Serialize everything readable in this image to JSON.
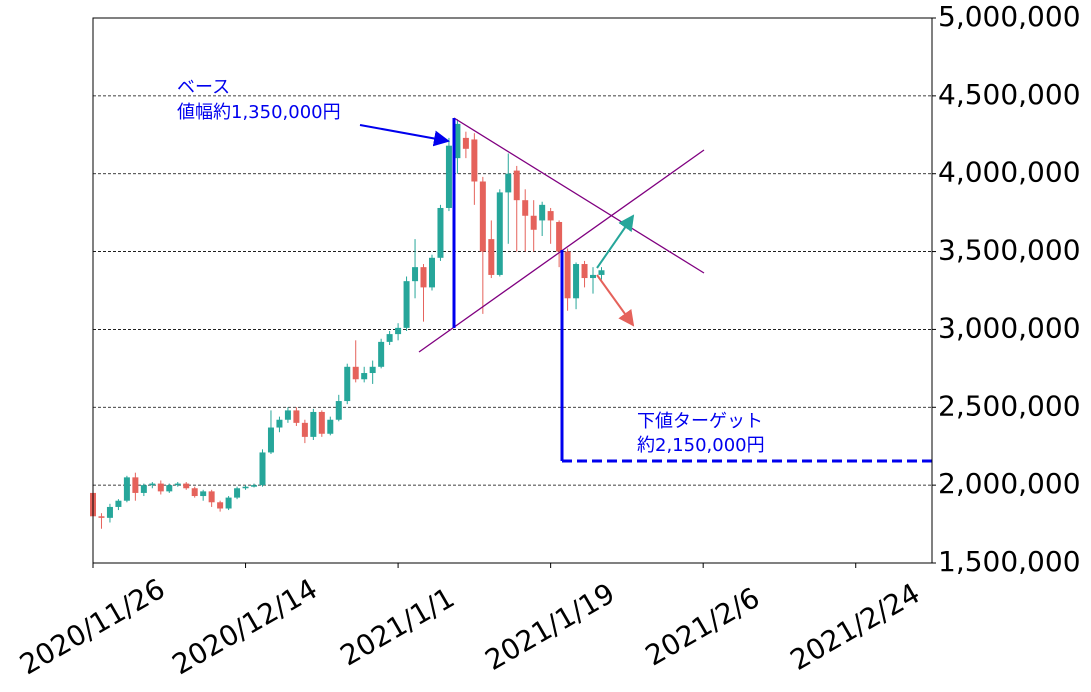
{
  "chart_data": {
    "type": "candlestick",
    "x": [
      "2020-11-26",
      "2020-11-27",
      "2020-11-28",
      "2020-11-29",
      "2020-11-30",
      "2020-12-01",
      "2020-12-02",
      "2020-12-03",
      "2020-12-04",
      "2020-12-05",
      "2020-12-06",
      "2020-12-07",
      "2020-12-08",
      "2020-12-09",
      "2020-12-10",
      "2020-12-11",
      "2020-12-12",
      "2020-12-13",
      "2020-12-14",
      "2020-12-15",
      "2020-12-16",
      "2020-12-17",
      "2020-12-18",
      "2020-12-19",
      "2020-12-20",
      "2020-12-21",
      "2020-12-22",
      "2020-12-23",
      "2020-12-24",
      "2020-12-25",
      "2020-12-26",
      "2020-12-27",
      "2020-12-28",
      "2020-12-29",
      "2020-12-30",
      "2020-12-31",
      "2021-01-01",
      "2021-01-02",
      "2021-01-03",
      "2021-01-04",
      "2021-01-05",
      "2021-01-06",
      "2021-01-07",
      "2021-01-08",
      "2021-01-09",
      "2021-01-10",
      "2021-01-11",
      "2021-01-12",
      "2021-01-13",
      "2021-01-14",
      "2021-01-15",
      "2021-01-16",
      "2021-01-17",
      "2021-01-18",
      "2021-01-19",
      "2021-01-20",
      "2021-01-21",
      "2021-01-22",
      "2021-01-23",
      "2021-01-24",
      "2021-01-25"
    ],
    "open": [
      1950000,
      1800000,
      1790000,
      1860000,
      1900000,
      2050000,
      1950000,
      2000000,
      2010000,
      1960000,
      2000000,
      2010000,
      1980000,
      1930000,
      1960000,
      1890000,
      1850000,
      1920000,
      1980000,
      1990000,
      2000000,
      2210000,
      2370000,
      2420000,
      2480000,
      2400000,
      2310000,
      2470000,
      2330000,
      2420000,
      2540000,
      2760000,
      2680000,
      2720000,
      2760000,
      2920000,
      2970000,
      3010000,
      3310000,
      3400000,
      3270000,
      3460000,
      3780000,
      4100000,
      4230000,
      4220000,
      3950000,
      3580000,
      3350000,
      3880000,
      4020000,
      3830000,
      3730000,
      3700000,
      3760000,
      3690000,
      3500000,
      3200000,
      3420000,
      3330000,
      3350000
    ],
    "high": [
      1960000,
      1820000,
      1880000,
      1910000,
      2060000,
      2080000,
      2010000,
      2020000,
      2030000,
      2010000,
      2020000,
      2020000,
      1990000,
      1970000,
      1970000,
      1900000,
      1930000,
      1990000,
      2000000,
      2010000,
      2230000,
      2480000,
      2440000,
      2500000,
      2500000,
      2420000,
      2490000,
      2480000,
      2440000,
      2580000,
      2780000,
      2930000,
      2760000,
      2800000,
      2940000,
      2990000,
      3040000,
      3340000,
      3580000,
      3420000,
      3480000,
      3800000,
      4230000,
      4350000,
      4270000,
      4260000,
      3980000,
      3700000,
      3900000,
      4130000,
      4050000,
      3900000,
      3830000,
      3820000,
      3780000,
      3700000,
      3520000,
      3430000,
      3440000,
      3400000,
      3400000
    ],
    "low": [
      1780000,
      1720000,
      1760000,
      1840000,
      1890000,
      1900000,
      1930000,
      1980000,
      1940000,
      1950000,
      1990000,
      1970000,
      1920000,
      1900000,
      1860000,
      1830000,
      1840000,
      1910000,
      1970000,
      1985000,
      1990000,
      2200000,
      2340000,
      2400000,
      2380000,
      2270000,
      2290000,
      2310000,
      2320000,
      2410000,
      2520000,
      2660000,
      2660000,
      2650000,
      2750000,
      2900000,
      2930000,
      2990000,
      3200000,
      3050000,
      3250000,
      3440000,
      3760000,
      4000000,
      4100000,
      3800000,
      3100000,
      3330000,
      3340000,
      3550000,
      3500000,
      3500000,
      3500000,
      3600000,
      3550000,
      3400000,
      3120000,
      3130000,
      3270000,
      3230000,
      3320000
    ],
    "close": [
      1800000,
      1790000,
      1860000,
      1900000,
      2050000,
      1950000,
      2000000,
      2010000,
      1960000,
      2000000,
      2010000,
      1980000,
      1930000,
      1960000,
      1890000,
      1850000,
      1920000,
      1980000,
      1990000,
      2000000,
      2210000,
      2370000,
      2420000,
      2480000,
      2400000,
      2310000,
      2470000,
      2330000,
      2420000,
      2540000,
      2760000,
      2680000,
      2720000,
      2760000,
      2920000,
      2970000,
      3010000,
      3310000,
      3400000,
      3270000,
      3460000,
      3780000,
      4180000,
      4320000,
      4160000,
      3950000,
      3500000,
      3350000,
      3880000,
      4000000,
      3830000,
      3730000,
      3640000,
      3800000,
      3700000,
      3500000,
      3200000,
      3420000,
      3330000,
      3350000,
      3380000
    ],
    "up_color": "#26a69a",
    "down_color": "#e5625b",
    "xlim": [
      "2020-11-26",
      "2021-03-05"
    ],
    "xticks": [
      {
        "value": "2020-11-26",
        "label": "2020/11/26"
      },
      {
        "value": "2020-12-14",
        "label": "2020/12/14"
      },
      {
        "value": "2021-01-01",
        "label": "2021/1/1"
      },
      {
        "value": "2021-01-19",
        "label": "2021/1/19"
      },
      {
        "value": "2021-02-06",
        "label": "2021/2/6"
      },
      {
        "value": "2021-02-24",
        "label": "2021/2/24"
      }
    ],
    "ylim": [
      1500000,
      5000000
    ],
    "yticks": [
      {
        "value": 1500000,
        "label": "1,500,000"
      },
      {
        "value": 2000000,
        "label": "2,000,000"
      },
      {
        "value": 2500000,
        "label": "2,500,000"
      },
      {
        "value": 3000000,
        "label": "3,000,000"
      },
      {
        "value": 3500000,
        "label": "3,500,000"
      },
      {
        "value": 4000000,
        "label": "4,000,000"
      },
      {
        "value": 4500000,
        "label": "4,500,000"
      },
      {
        "value": 5000000,
        "label": "5,000,000"
      }
    ],
    "grid": true,
    "annotations": [
      "ベース",
      "値幅約1,350,000円",
      "下値ターゲット",
      "約2,150,000円"
    ]
  }
}
